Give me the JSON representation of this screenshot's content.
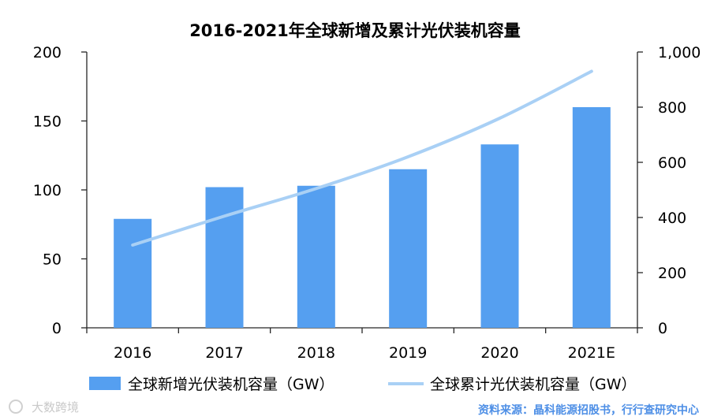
{
  "chart_data": {
    "type": "bar+line",
    "title": "2016-2021年全球新增及累计光伏装机容量",
    "categories": [
      "2016",
      "2017",
      "2018",
      "2019",
      "2020",
      "2021E"
    ],
    "series": [
      {
        "name": "全球新增光伏装机容量（GW）",
        "type": "bar",
        "axis": "left",
        "color": "#559ff0",
        "values": [
          79,
          102,
          103,
          115,
          133,
          160
        ]
      },
      {
        "name": "全球累计光伏装机容量（GW）",
        "type": "line",
        "axis": "right",
        "color": "#a9d0f5",
        "values": [
          300,
          405,
          505,
          620,
          760,
          930
        ]
      }
    ],
    "y_left": {
      "min": 0,
      "max": 200,
      "ticks": [
        "0",
        "50",
        "100",
        "150",
        "200"
      ]
    },
    "y_right": {
      "min": 0,
      "max": 1000,
      "ticks": [
        "0",
        "200",
        "400",
        "600",
        "800",
        "1,000"
      ]
    },
    "grid": false,
    "legend": "bottom"
  },
  "source": "资料来源：晶科能源招股书，行行查研究中心",
  "watermark": "大数跨境"
}
